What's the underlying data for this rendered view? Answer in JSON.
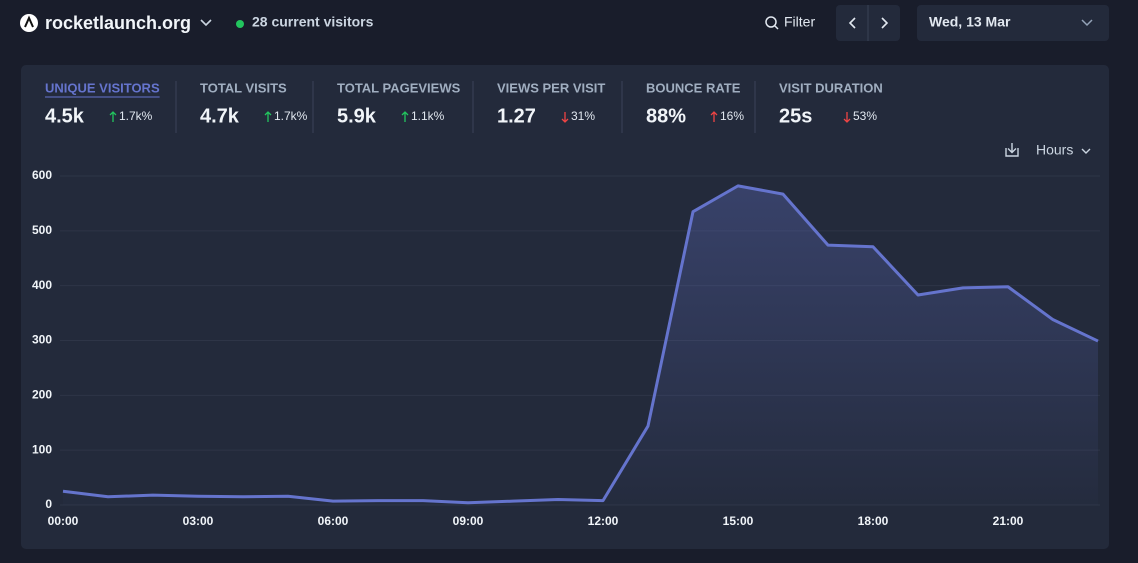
{
  "header": {
    "site": "rocketlaunch.org",
    "current_visitors": "28 current visitors",
    "filter": "Filter",
    "date": "Wed, 13 Mar"
  },
  "stats": [
    {
      "label": "UNIQUE VISITORS",
      "value": "4.5k",
      "change": "1.7k%",
      "trend": "up",
      "trend_color": "#22c55e",
      "selected": true
    },
    {
      "label": "TOTAL VISITS",
      "value": "4.7k",
      "change": "1.7k%",
      "trend": "up",
      "trend_color": "#22c55e"
    },
    {
      "label": "TOTAL PAGEVIEWS",
      "value": "5.9k",
      "change": "1.1k%",
      "trend": "up",
      "trend_color": "#22c55e"
    },
    {
      "label": "VIEWS PER VISIT",
      "value": "1.27",
      "change": "31%",
      "trend": "down",
      "trend_color": "#ef4444"
    },
    {
      "label": "BOUNCE RATE",
      "value": "88%",
      "change": "16%",
      "trend": "up",
      "trend_color": "#ef4444"
    },
    {
      "label": "VISIT DURATION",
      "value": "25s",
      "change": "53%",
      "trend": "down",
      "trend_color": "#ef4444"
    }
  ],
  "interval": "Hours",
  "chart_data": {
    "type": "line",
    "categories": [
      "00:00",
      null,
      null,
      "03:00",
      null,
      null,
      "06:00",
      null,
      null,
      "09:00",
      null,
      null,
      "12:00",
      null,
      null,
      "15:00",
      null,
      null,
      "18:00",
      null,
      null,
      "21:00",
      null,
      null
    ],
    "values": [
      25,
      15,
      18,
      16,
      15,
      16,
      7,
      8,
      8,
      4,
      7,
      10,
      8,
      144,
      535,
      582,
      567,
      474,
      471,
      383,
      396,
      398,
      338,
      299
    ],
    "color": "#6574cd",
    "ylim": [
      0,
      600
    ],
    "yticks": [
      0,
      100,
      200,
      300,
      400,
      500,
      600
    ],
    "grid": true
  }
}
